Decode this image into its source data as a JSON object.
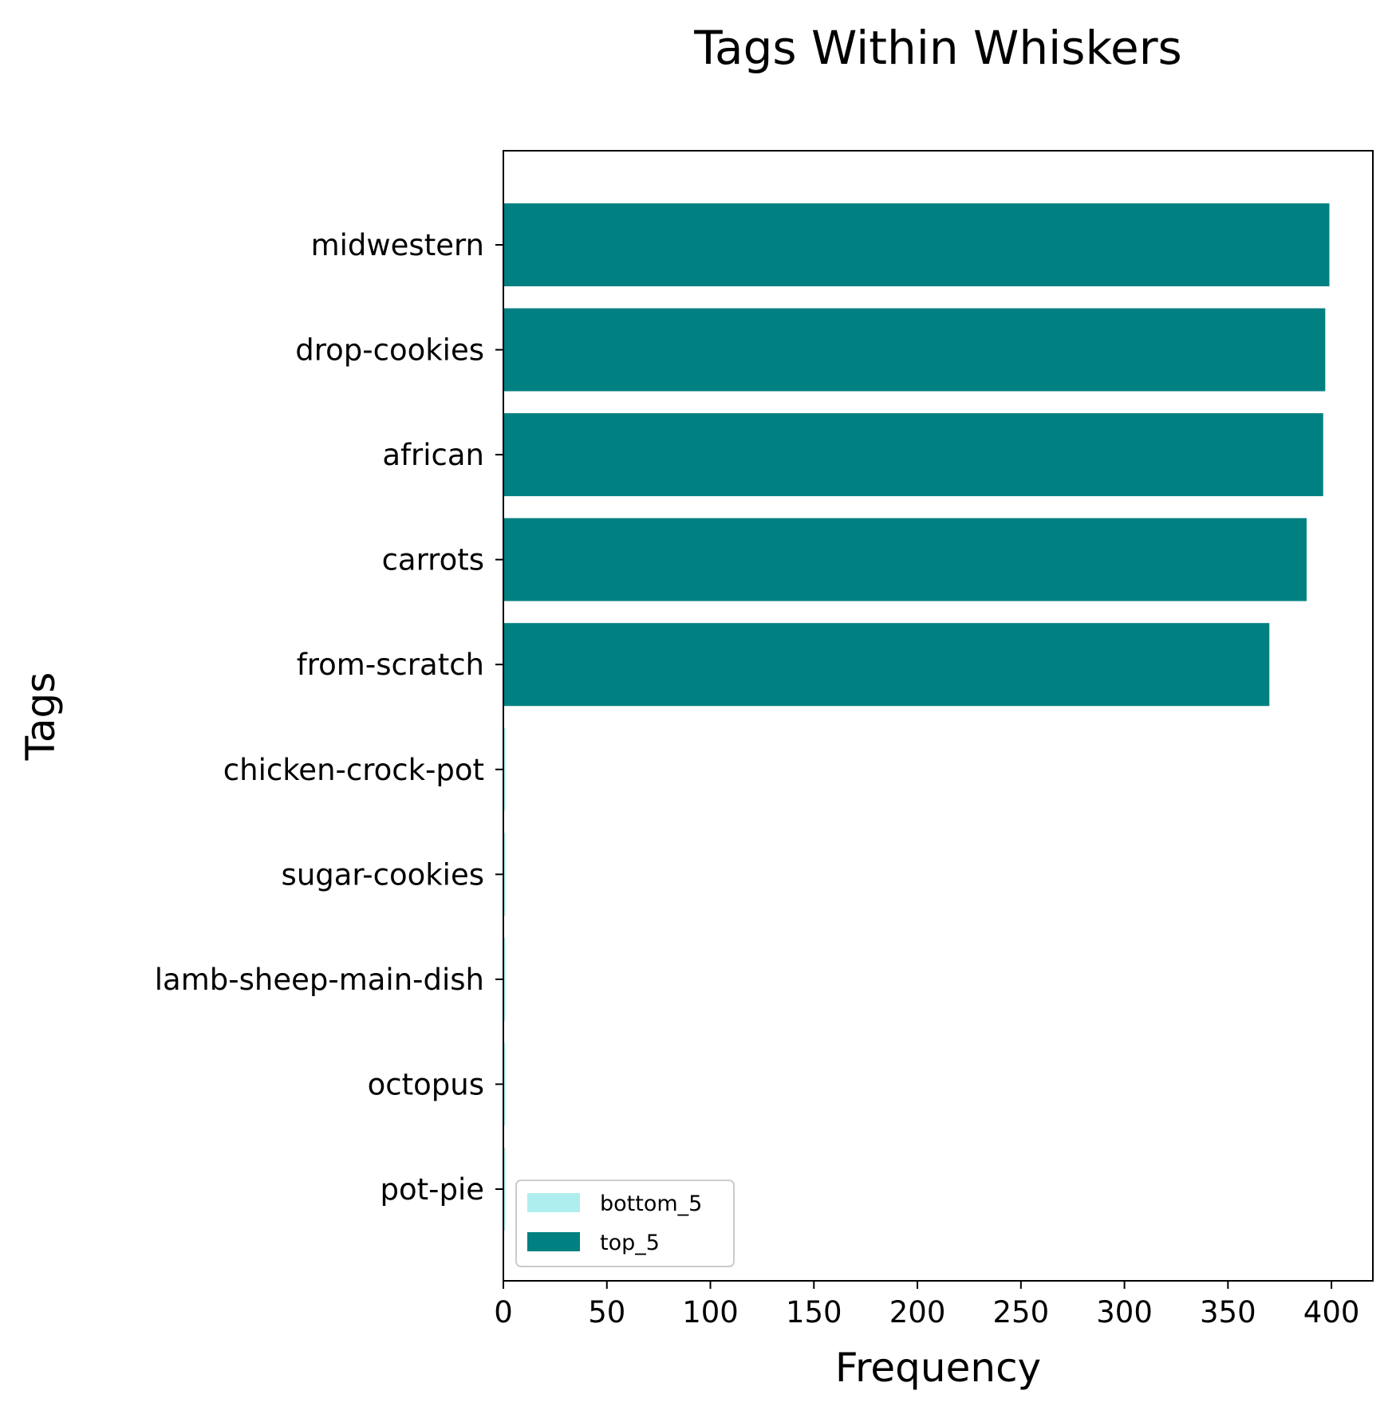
{
  "chart_data": {
    "type": "bar",
    "orientation": "horizontal",
    "title": "Tags Within Whiskers",
    "xlabel": "Frequency",
    "ylabel": "Tags",
    "xlim": [
      0,
      420
    ],
    "xticks": [
      0,
      50,
      100,
      150,
      200,
      250,
      300,
      350,
      400
    ],
    "grid": false,
    "legend_position": "lower-left",
    "categories": [
      "midwestern",
      "drop-cookies",
      "african",
      "carrots",
      "from-scratch",
      "chicken-crock-pot",
      "sugar-cookies",
      "lamb-sheep-main-dish",
      "octopus",
      "pot-pie"
    ],
    "series": [
      {
        "name": "bottom_5",
        "color": "#afeeee",
        "values": [
          0,
          0,
          0,
          0,
          0,
          1,
          1,
          1,
          1,
          1
        ]
      },
      {
        "name": "top_5",
        "color": "#008080",
        "values": [
          399,
          397,
          396,
          388,
          370,
          0,
          0,
          0,
          0,
          0
        ]
      }
    ]
  }
}
